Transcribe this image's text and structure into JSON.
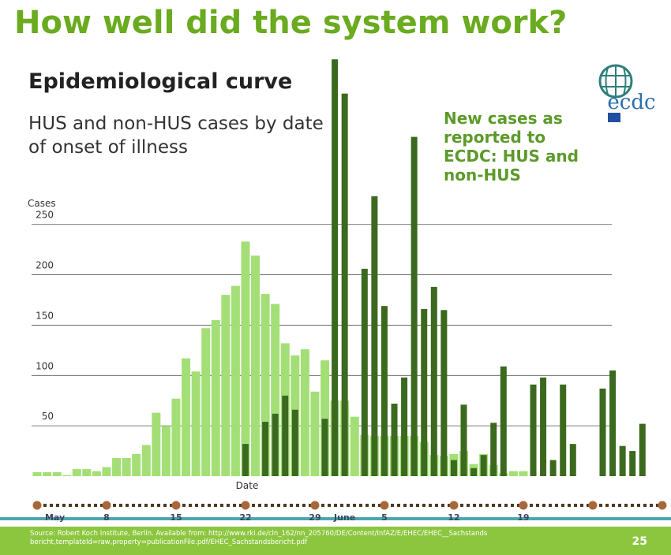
{
  "slide": {
    "title": "How well did the system work?",
    "logo": "ecdc",
    "source": "Source: Robert Koch Institute, Berlin. Available from: http://www.rki.de/cln_162/nn_205760/DE/Content/InfAZ/E/EHEC/EHEC__Sachstandsbericht,templateId=raw,property=publicationFile.pdf/EHEC_Sachstandsbericht.pdf",
    "page": "25"
  },
  "chart_data": {
    "type": "bar",
    "title": "Epidemiological curve",
    "subtitle": "HUS and non-HUS cases by date of onset of illness",
    "y_label": "Cases",
    "x_label": "Date",
    "categories": [
      null,
      "May",
      null,
      null,
      null,
      null,
      null,
      "8",
      null,
      null,
      null,
      null,
      null,
      null,
      "15",
      null,
      null,
      null,
      null,
      null,
      null,
      "22",
      null,
      null,
      null,
      null,
      null,
      null,
      "29",
      null,
      null,
      "June",
      null,
      null,
      null,
      "5",
      null,
      null,
      null,
      null,
      null,
      null,
      "12",
      null,
      null,
      null,
      null,
      null,
      null,
      "19",
      null,
      null,
      null,
      null,
      null,
      null,
      null,
      null,
      null,
      null,
      null,
      null,
      null
    ],
    "series": [
      {
        "color": "#a3df76",
        "values": [
          4,
          4,
          4,
          1,
          7,
          7,
          5,
          9,
          18,
          18,
          22,
          31,
          63,
          50,
          77,
          117,
          104,
          147,
          155,
          180,
          189,
          233,
          219,
          181,
          171,
          132,
          120,
          126,
          84,
          115,
          75,
          75,
          59,
          41,
          40,
          40,
          40,
          40,
          40,
          34,
          21,
          20,
          22,
          25,
          12,
          22,
          11,
          3,
          5,
          5,
          null,
          null,
          null,
          null,
          null,
          null,
          null,
          null,
          null,
          null,
          null,
          null,
          null
        ]
      },
      {
        "name": "New cases as reported to ECDC: HUS and non-HUS",
        "color": "#3b6a1f",
        "values": [
          null,
          null,
          null,
          null,
          null,
          null,
          null,
          null,
          null,
          null,
          null,
          null,
          null,
          null,
          null,
          null,
          null,
          null,
          null,
          null,
          null,
          32,
          null,
          54,
          62,
          80,
          66,
          null,
          null,
          57,
          414,
          380,
          null,
          206,
          278,
          169,
          72,
          98,
          337,
          166,
          188,
          165,
          16,
          71,
          8,
          21,
          53,
          109,
          null,
          null,
          91,
          98,
          16,
          91,
          32,
          null,
          null,
          87,
          105,
          30,
          25,
          52,
          null
        ]
      }
    ],
    "ylim": [
      0,
      415
    ],
    "yticks": [
      50,
      100,
      150,
      200,
      250
    ],
    "grid": true
  }
}
